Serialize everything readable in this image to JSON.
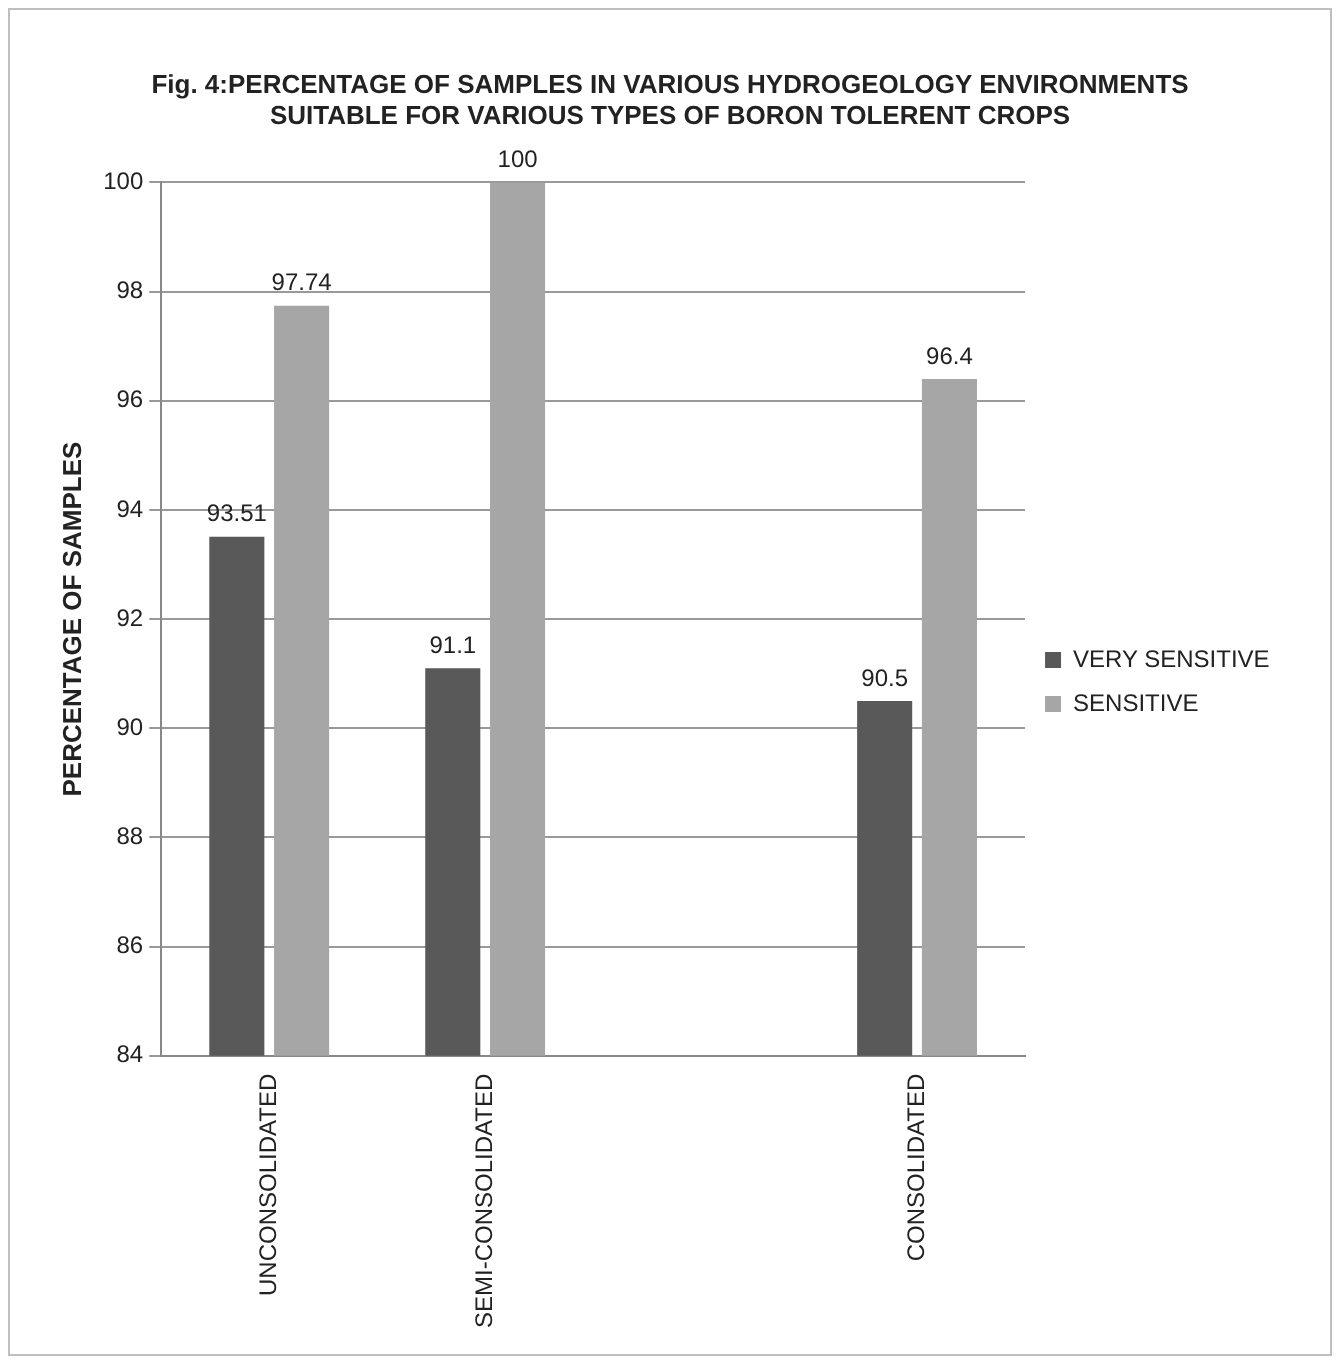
{
  "chart_data": {
    "type": "bar",
    "title": "Fig. 4:PERCENTAGE OF SAMPLES IN VARIOUS HYDROGEOLOGY ENVIRONMENTS SUITABLE FOR VARIOUS TYPES OF BORON TOLERENT CROPS",
    "ylabel": "PERCENTAGE OF SAMPLES",
    "categories": [
      "UNCONSOLIDATED",
      "SEMI-CONSOLIDATED",
      null,
      "CONSOLIDATED"
    ],
    "series": [
      {
        "name": "VERY SENSITIVE",
        "color": "#595959",
        "values": [
          93.51,
          91.1,
          null,
          90.5
        ]
      },
      {
        "name": "SENSITIVE",
        "color": "#a6a6a6",
        "values": [
          97.74,
          100,
          null,
          96.4
        ]
      }
    ],
    "ylim": [
      84,
      100
    ],
    "yticks": [
      84,
      86,
      88,
      90,
      92,
      94,
      96,
      98,
      100
    ],
    "grid": "y",
    "legend": "right",
    "data_labels": true
  }
}
